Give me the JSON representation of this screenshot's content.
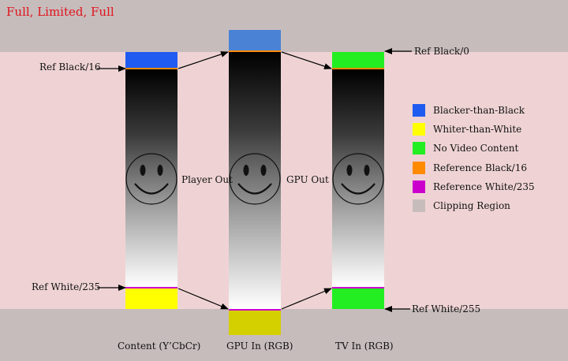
{
  "title": "Full, Limited, Full",
  "colors": {
    "blacker_than_black": "#1f5bf0",
    "gpu_btb": "#4a82d6",
    "whiter_than_white": "#ffff00",
    "gpu_wtw": "#d4d000",
    "no_video": "#22ee22",
    "reference_black": "#ff8a00",
    "reference_white": "#cc00cc",
    "clipping": "#c7bcbc"
  },
  "annotations": {
    "ref_black_16": "Ref Black/16",
    "ref_white_235": "Ref White/235",
    "ref_black_0": "Ref Black/0",
    "ref_white_255": "Ref White/255",
    "player_out": "Player Out",
    "gpu_out": "GPU Out"
  },
  "columns": [
    {
      "label": "Content (Y’CbCr)",
      "icon": "smiley-face-icon"
    },
    {
      "label": "GPU In (RGB)",
      "icon": "smiley-face-icon"
    },
    {
      "label": "TV In (RGB)",
      "icon": "smiley-face-icon"
    }
  ],
  "legend": [
    {
      "label": "Blacker-than-Black",
      "color": "#1f5bf0"
    },
    {
      "label": "Whiter-than-White",
      "color": "#ffff00"
    },
    {
      "label": "No Video Content",
      "color": "#22ee22"
    },
    {
      "label": "Reference Black/16",
      "color": "#ff8a00"
    },
    {
      "label": "Reference White/235",
      "color": "#cc00cc"
    },
    {
      "label": "Clipping Region",
      "color": "#c7bcbc"
    }
  ]
}
